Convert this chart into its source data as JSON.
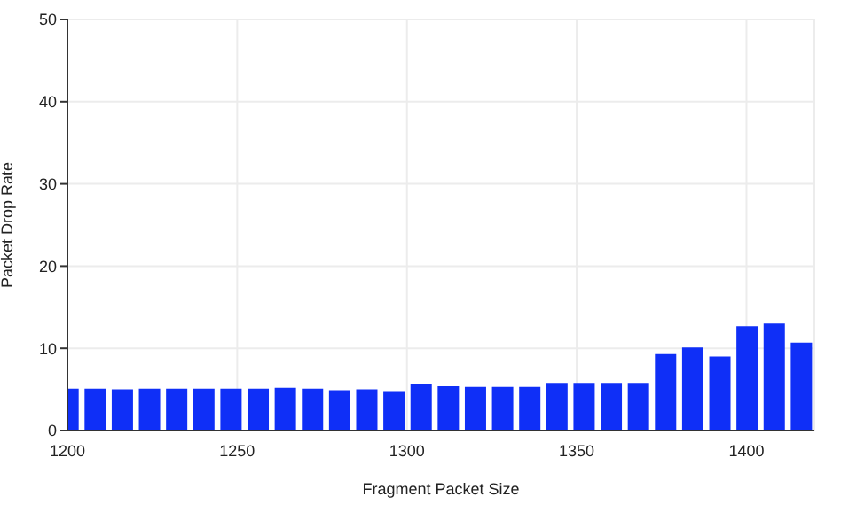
{
  "chart_data": {
    "type": "bar",
    "xlabel": "Fragment Packet Size",
    "ylabel": "Packet Drop Rate",
    "x": [
      1200,
      1208,
      1216,
      1224,
      1232,
      1240,
      1248,
      1256,
      1264,
      1272,
      1280,
      1288,
      1296,
      1304,
      1312,
      1320,
      1328,
      1336,
      1344,
      1352,
      1360,
      1368,
      1376,
      1384,
      1392,
      1400,
      1408,
      1416
    ],
    "values": [
      5.1,
      5.1,
      5.0,
      5.1,
      5.1,
      5.1,
      5.1,
      5.1,
      5.2,
      5.1,
      4.9,
      5.0,
      4.8,
      5.6,
      5.4,
      5.3,
      5.3,
      5.3,
      5.8,
      5.8,
      5.8,
      5.8,
      9.3,
      10.1,
      9.0,
      12.7,
      13.0,
      10.7
    ],
    "color": "#0f2ff7",
    "xlim": [
      1200,
      1420
    ],
    "xticks": [
      1200,
      1250,
      1300,
      1350,
      1400
    ],
    "ylim": [
      0,
      50
    ],
    "yticks": [
      0,
      10,
      20,
      30,
      40,
      50
    ],
    "grid": true
  }
}
